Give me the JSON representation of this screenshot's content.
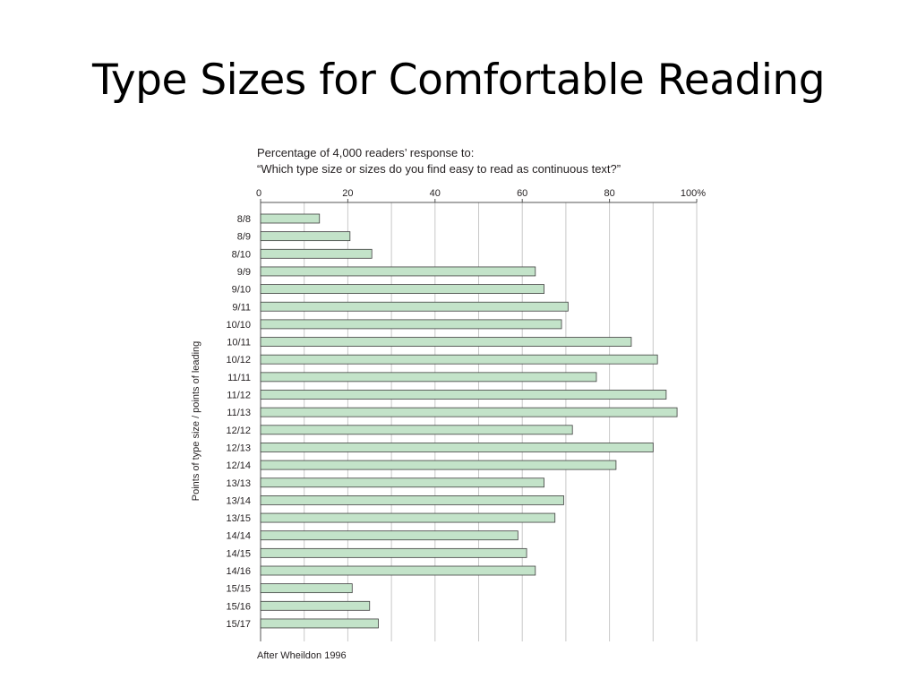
{
  "slide": {
    "title": "Type Sizes for Comfortable Reading"
  },
  "chart_data": {
    "type": "bar",
    "orientation": "horizontal",
    "title_lines": [
      "Percentage of 4,000 readers’ response to:",
      "“Which type size or sizes do you find easy to read as continuous text?”"
    ],
    "xlabel": "",
    "ylabel": "Points of type size / points of leading",
    "xlim": [
      0,
      100
    ],
    "xticks": [
      {
        "value": 0,
        "label": "0"
      },
      {
        "value": 20,
        "label": "20"
      },
      {
        "value": 40,
        "label": "40"
      },
      {
        "value": 60,
        "label": "60"
      },
      {
        "value": 80,
        "label": "80"
      },
      {
        "value": 100,
        "label": "100%"
      }
    ],
    "grid": true,
    "categories": [
      "8/8",
      "8/9",
      "8/10",
      "9/9",
      "9/10",
      "9/11",
      "10/10",
      "10/11",
      "10/12",
      "11/11",
      "11/12",
      "11/13",
      "12/12",
      "12/13",
      "12/14",
      "13/13",
      "13/14",
      "13/15",
      "14/14",
      "14/15",
      "14/16",
      "15/15",
      "15/16",
      "15/17"
    ],
    "values": [
      13.5,
      20.5,
      25.5,
      63,
      65,
      70.5,
      69,
      85,
      91,
      77,
      93,
      95.5,
      71.5,
      90,
      81.5,
      65,
      69.5,
      67.5,
      59,
      61,
      63,
      21,
      25,
      27
    ],
    "bar_color": "#c3e3c9",
    "bar_stroke": "#3f3f3f",
    "source_note": "After Wheildon 1996"
  }
}
